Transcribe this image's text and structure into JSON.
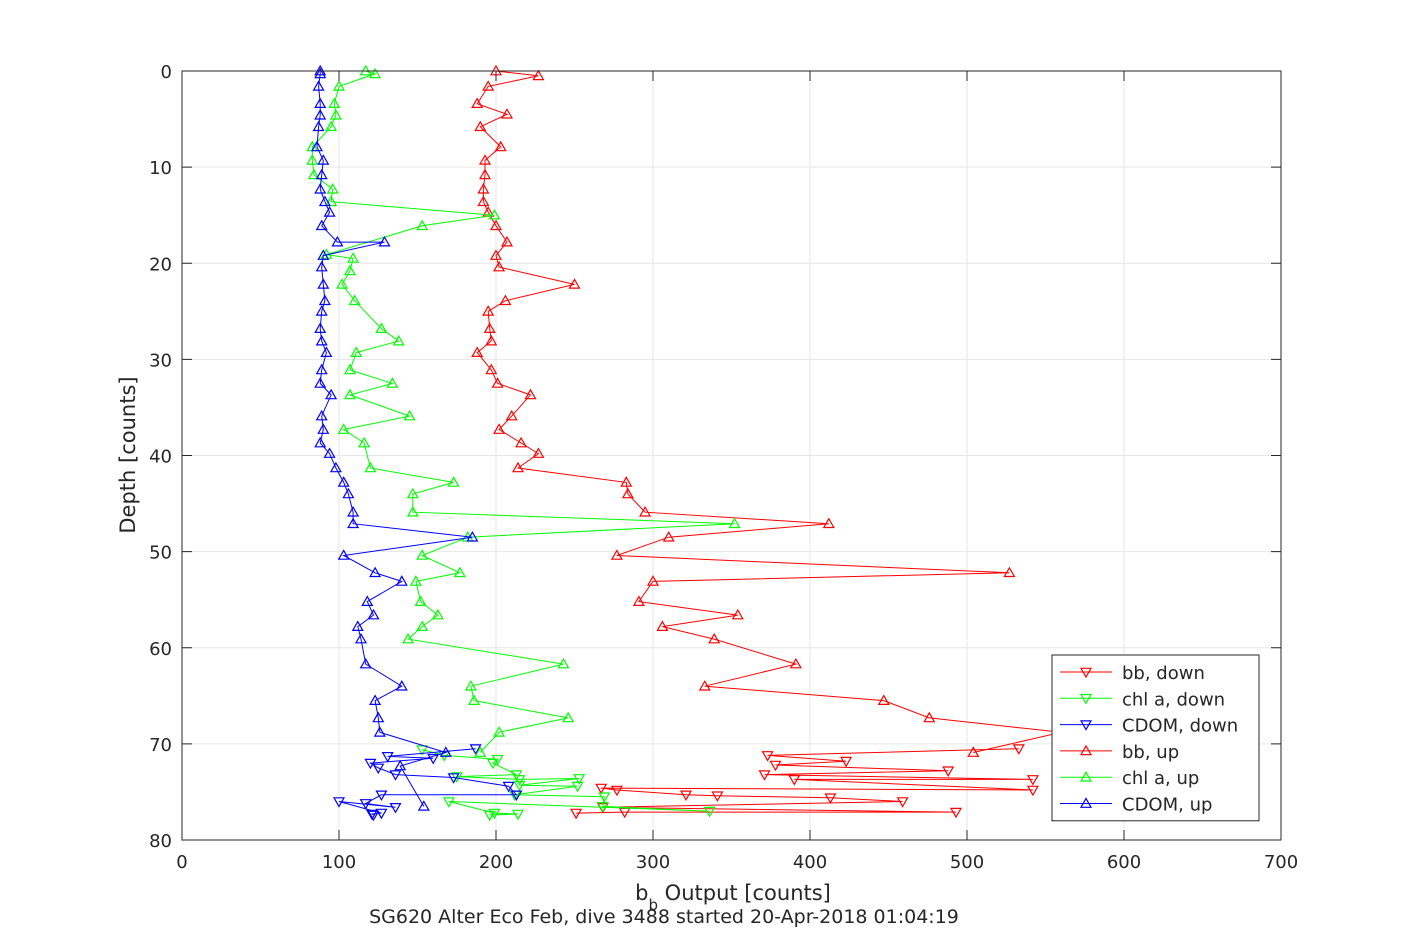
{
  "chart_data": {
    "type": "line",
    "xlabel": {
      "main": "b",
      "sub": "b",
      "rest": " Output [counts]"
    },
    "ylabel": "Depth [counts]",
    "caption": "SG620 Alter Eco Feb, dive 3488 started 20-Apr-2018 01:04:19",
    "xlim": [
      0,
      700
    ],
    "ylim": [
      0,
      80
    ],
    "y_reversed": true,
    "xticks": [
      0,
      100,
      200,
      300,
      400,
      500,
      600,
      700
    ],
    "yticks": [
      0,
      10,
      20,
      30,
      40,
      50,
      60,
      70,
      80
    ],
    "grid": true,
    "legend_position": "bottom-right",
    "series": [
      {
        "name": "bb, down",
        "color": "#ff0000",
        "marker": "triangle-down",
        "x": [
          533,
          373,
          423,
          378,
          488,
          371,
          542,
          390,
          542,
          267,
          277,
          321,
          341,
          413,
          459,
          268,
          493,
          282,
          251
        ],
        "y": [
          70.5,
          71.2,
          71.8,
          72.2,
          72.8,
          73.2,
          73.7,
          73.7,
          74.8,
          74.6,
          74.8,
          75.3,
          75.4,
          75.6,
          76,
          76.6,
          77.1,
          77.1,
          77.2
        ]
      },
      {
        "name": "chl a, down",
        "color": "#00ff00",
        "marker": "triangle-down",
        "x": [
          153,
          167,
          201,
          198,
          213,
          175,
          215,
          253,
          215,
          252,
          212,
          269,
          268,
          336,
          170,
          199,
          214,
          196
        ],
        "y": [
          70.6,
          71.2,
          71.6,
          72,
          73.2,
          73.4,
          73.7,
          73.6,
          74.3,
          74.4,
          75.3,
          75.5,
          76.5,
          77,
          76,
          77.2,
          77.3,
          77.4
        ]
      },
      {
        "name": "CDOM, down",
        "color": "#0000ff",
        "marker": "triangle-down",
        "x": [
          187,
          131,
          160,
          120,
          125,
          136,
          173,
          208,
          213,
          127,
          117,
          136,
          100,
          127,
          121,
          122
        ],
        "y": [
          70.5,
          71.3,
          71.5,
          72,
          72.5,
          73.2,
          73.5,
          74.4,
          75.3,
          75.3,
          76.2,
          76.6,
          76,
          77.2,
          77.3,
          77.4
        ]
      },
      {
        "name": "bb, up",
        "color": "#ff0000",
        "marker": "triangle-up",
        "x": [
          200,
          227,
          195,
          188,
          207,
          190,
          203,
          193,
          193,
          192,
          192,
          195,
          200,
          207,
          200,
          202,
          250,
          206,
          195,
          196,
          197,
          188,
          197,
          201,
          222,
          210,
          202,
          216,
          227,
          214,
          283,
          284,
          295,
          412,
          310,
          277,
          527,
          300,
          291,
          354,
          306,
          339,
          391,
          333,
          447,
          476,
          560,
          504
        ],
        "y": [
          0,
          0.5,
          1.6,
          3.4,
          4.5,
          5.8,
          7.9,
          9.3,
          10.8,
          12.3,
          13.6,
          14.7,
          16.1,
          17.8,
          19.2,
          20.4,
          22.2,
          23.9,
          25,
          26.8,
          28.1,
          29.3,
          31.1,
          32.5,
          33.7,
          35.9,
          37.3,
          38.7,
          39.8,
          41.3,
          42.8,
          44,
          45.9,
          47.1,
          48.5,
          50.4,
          52.2,
          53.1,
          55.2,
          56.6,
          57.8,
          59.1,
          61.7,
          64,
          65.5,
          67.3,
          68.8,
          70.9
        ]
      },
      {
        "name": "chl a, up",
        "color": "#00ff00",
        "marker": "triangle-up",
        "x": [
          117,
          123,
          100,
          97,
          98,
          95,
          83,
          83,
          84,
          96,
          95,
          199,
          153,
          92,
          109,
          107,
          102,
          110,
          127,
          138,
          111,
          107,
          134,
          107,
          145,
          103,
          116,
          120,
          173,
          147,
          147,
          352,
          182,
          153,
          177,
          149,
          152,
          163,
          153,
          144,
          243,
          184,
          186,
          246,
          202,
          190
        ],
        "y": [
          0,
          0.3,
          1.6,
          3.4,
          4.6,
          5.8,
          7.9,
          9.3,
          10.8,
          12.3,
          13.6,
          15,
          16.1,
          19.1,
          19.5,
          20.8,
          22.2,
          23.9,
          26.8,
          28.1,
          29.3,
          31.1,
          32.5,
          33.7,
          35.9,
          37.3,
          38.7,
          41.3,
          42.8,
          44,
          45.9,
          47.1,
          48.5,
          50.4,
          52.2,
          53.1,
          55.2,
          56.6,
          57.8,
          59.1,
          61.7,
          64,
          65.5,
          67.3,
          68.8,
          70.9
        ]
      },
      {
        "name": "CDOM, up",
        "color": "#0000ff",
        "marker": "triangle-up",
        "x": [
          88,
          88,
          87,
          88,
          88,
          87,
          86,
          90,
          89,
          88,
          91,
          94,
          89,
          99,
          129,
          90,
          89,
          90,
          91,
          89,
          88,
          89,
          92,
          89,
          88,
          95,
          89,
          90,
          88,
          94,
          98,
          103,
          106,
          109,
          109,
          185,
          103,
          123,
          140,
          118,
          122,
          112,
          114,
          117,
          140,
          123,
          125,
          126,
          168,
          139,
          154
        ],
        "y": [
          0,
          0.3,
          1.6,
          3.4,
          4.6,
          5.8,
          7.9,
          9.3,
          10.8,
          12.3,
          13.6,
          14.7,
          16.1,
          17.8,
          17.8,
          19.2,
          20.4,
          22.2,
          23.9,
          25,
          26.8,
          28.1,
          29.3,
          31.1,
          32.5,
          33.7,
          35.9,
          37.3,
          38.7,
          39.8,
          41.3,
          42.8,
          44,
          45.9,
          47.1,
          48.5,
          50.4,
          52.2,
          53.1,
          55.2,
          56.6,
          57.8,
          59.1,
          61.7,
          64,
          65.5,
          67.3,
          68.8,
          70.9,
          72.3,
          76.5
        ]
      }
    ]
  }
}
